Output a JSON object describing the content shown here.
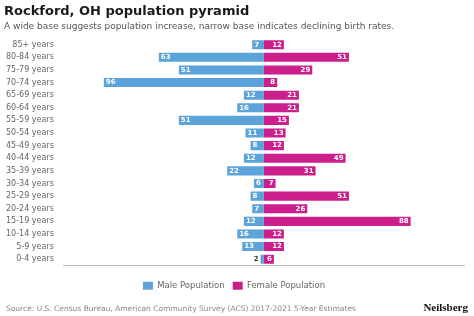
{
  "chart_data": {
    "type": "bar",
    "orientation": "horizontal",
    "title": "Rockford, OH population pyramid",
    "subtitle": "A wide base suggests population increase, narrow base indicates declining birth rates.",
    "annotations": [
      "Source: U.S. Census Bureau, American Community Survey (ACS) 2017-2021 5-Year Estimates",
      "Neilsberg"
    ],
    "categories": [
      "0-4 years",
      "5-9 years",
      "10-14 years",
      "15-19 years",
      "20-24 years",
      "25-29 years",
      "30-34 years",
      "35-39 years",
      "40-44 years",
      "45-49 years",
      "50-54 years",
      "55-59 years",
      "60-64 years",
      "65-69 years",
      "70-74 years",
      "75-79 years",
      "80-84 years",
      "85+ years"
    ],
    "series": [
      {
        "name": "Male Population",
        "color": "#5ba3d9",
        "values": [
          2,
          13,
          16,
          12,
          7,
          8,
          6,
          22,
          12,
          8,
          11,
          51,
          16,
          12,
          96,
          51,
          63,
          7
        ]
      },
      {
        "name": "Female Population",
        "color": "#cc1f8c",
        "values": [
          6,
          12,
          12,
          88,
          26,
          51,
          7,
          31,
          49,
          12,
          13,
          15,
          21,
          21,
          8,
          29,
          51,
          12
        ]
      }
    ],
    "xlim": [
      -120,
      120
    ],
    "grid": false,
    "legend": "bottom",
    "data_labels": true,
    "tick_labels": "y"
  }
}
